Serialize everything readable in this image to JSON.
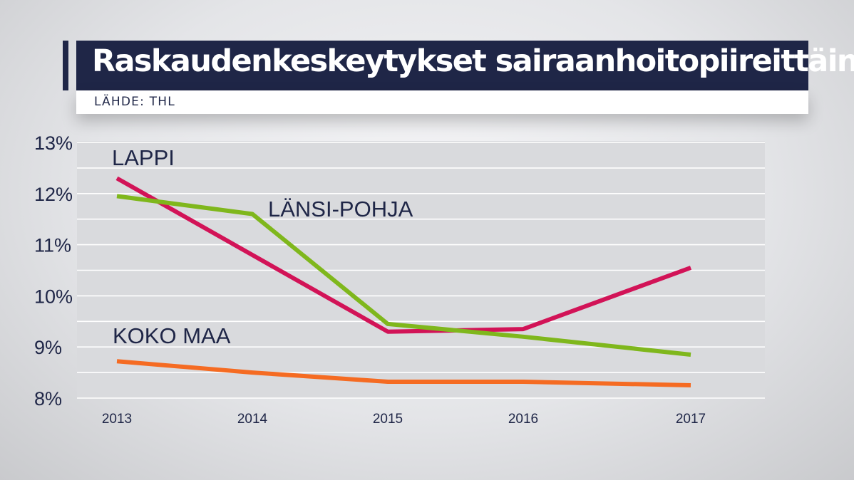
{
  "header": {
    "title": "Raskaudenkeskeytykset sairaanhoitopiireittäin",
    "source": "LÄHDE: THL"
  },
  "colors": {
    "title_bg": "#1f2647",
    "text": "#1f2647",
    "grid": "#ffffff",
    "plot_bg": "#d9dadd"
  },
  "chart_data": {
    "type": "line",
    "x": [
      "2013",
      "2014",
      "2015",
      "2016",
      "2017"
    ],
    "yticks": [
      "13%",
      "12%",
      "11%",
      "10%",
      "9%",
      "8%"
    ],
    "ylim": [
      8,
      13
    ],
    "grid": true,
    "series": [
      {
        "name": "LAPPI",
        "color": "#d21357",
        "values": [
          12.3,
          10.8,
          9.3,
          9.35,
          10.55
        ]
      },
      {
        "name": "LÄNSI-POHJA",
        "color": "#7fb71c",
        "values": [
          11.95,
          11.6,
          9.45,
          9.2,
          8.85
        ]
      },
      {
        "name": "KOKO MAA",
        "color": "#f56b22",
        "values": [
          8.72,
          8.5,
          8.32,
          8.32,
          8.25
        ]
      }
    ]
  }
}
